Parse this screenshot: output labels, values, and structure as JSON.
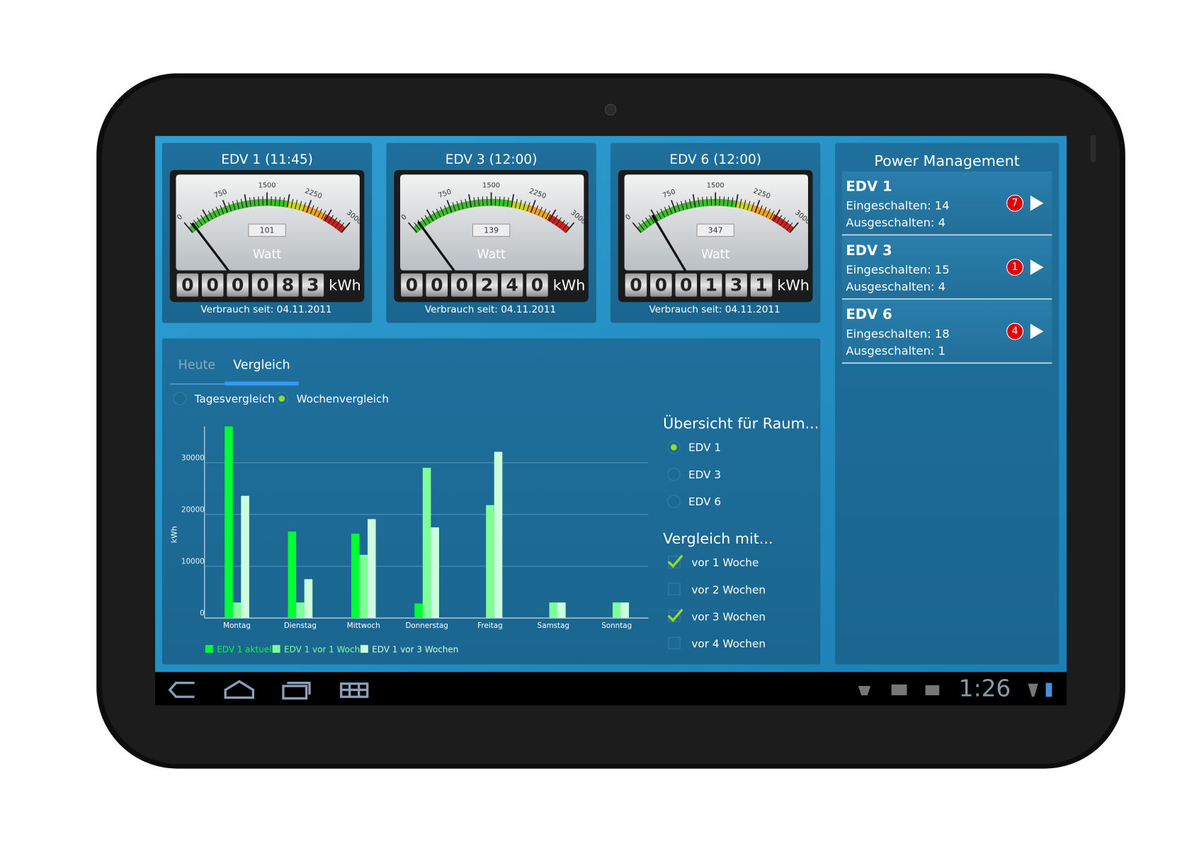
{
  "gauges": [
    {
      "title": "EDV 1 (11:45)",
      "watts": 101,
      "counter": [
        0,
        0,
        0,
        0,
        8,
        3
      ]
    },
    {
      "title": "EDV 3 (12:00)",
      "watts": 139,
      "counter": [
        0,
        0,
        0,
        2,
        4,
        0
      ]
    },
    {
      "title": "EDV 6 (12:00)",
      "watts": 347,
      "counter": [
        0,
        0,
        0,
        1,
        3,
        1
      ]
    }
  ],
  "gauge_scale": [
    0,
    750,
    1500,
    2250,
    3000
  ],
  "gauge_unit": "Watt",
  "counter_unit": "kWh",
  "since": "Verbrauch seit: 04.11.2011",
  "tabs": [
    "Heute",
    "Vergleich"
  ],
  "active_tab": 1,
  "modes": [
    "Tagesvergleich",
    "Wochenvergleich"
  ],
  "selected_mode": 1,
  "room_title": "Übersicht für Raum...",
  "rooms": [
    "EDV 1",
    "EDV 3",
    "EDV 6"
  ],
  "selected_room": 0,
  "compare_title": "Vergleich mit...",
  "compare": [
    {
      "label": "vor 1 Woche",
      "checked": true
    },
    {
      "label": "vor 2 Wochen",
      "checked": false
    },
    {
      "label": "vor 3 Wochen",
      "checked": true
    },
    {
      "label": "vor 4 Wochen",
      "checked": false
    }
  ],
  "power": {
    "title": "Power Management",
    "items": [
      {
        "name": "EDV 1",
        "on": "Eingeschalten: 14",
        "off": "Ausgeschalten: 4",
        "alerts": 7
      },
      {
        "name": "EDV 3",
        "on": "Eingeschalten: 15",
        "off": "Ausgeschalten: 4",
        "alerts": 1
      },
      {
        "name": "EDV 6",
        "on": "Eingeschalten: 18",
        "off": "Ausgeschalten: 1",
        "alerts": 4
      }
    ]
  },
  "status_time": "1:26",
  "chart_data": {
    "type": "bar",
    "y_label": "kWh",
    "categories": [
      "Montag",
      "Dienstag",
      "Mittwoch",
      "Donnerstag",
      "Freitag",
      "Samstag",
      "Sonntag"
    ],
    "series": [
      {
        "name": "EDV 1 aktuell",
        "color": "#00ff33",
        "values": [
          37000,
          16700,
          16300,
          2800,
          0,
          0,
          0
        ]
      },
      {
        "name": "EDV 1 vor 1 Woche",
        "color": "#80ff99",
        "values": [
          3000,
          3000,
          12200,
          29000,
          21800,
          3000,
          3000
        ]
      },
      {
        "name": "EDV 1 vor 3 Wochen",
        "color": "#ccffdd",
        "values": [
          23600,
          7500,
          19100,
          17500,
          32100,
          3000,
          3000
        ]
      }
    ],
    "ylim": [
      0,
      37000
    ],
    "yticks": [
      0,
      10000,
      20000,
      30000
    ],
    "grid": true
  }
}
